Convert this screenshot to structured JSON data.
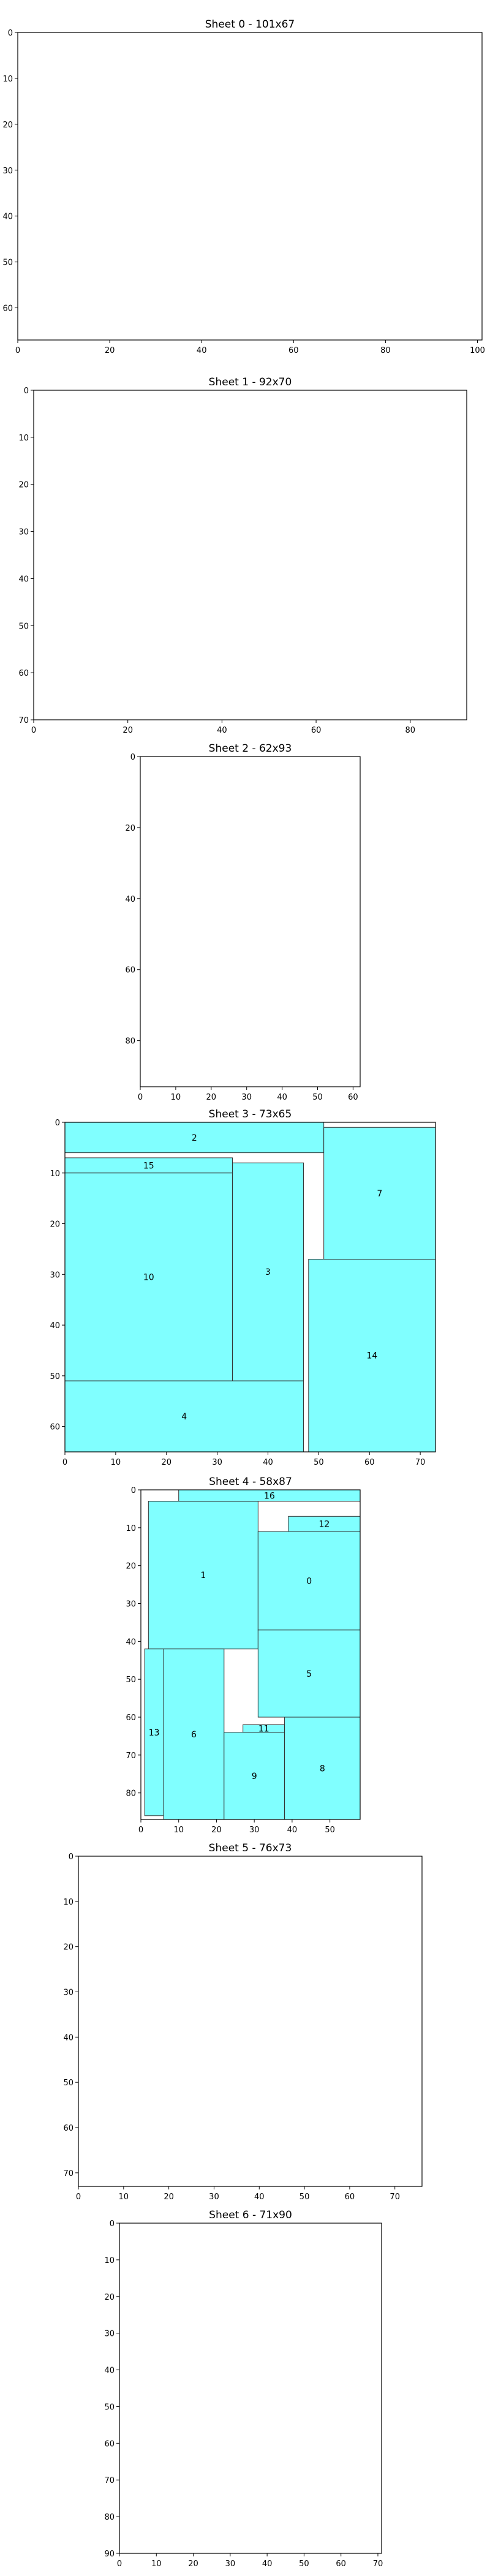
{
  "chart_data": [
    {
      "type": "rect-packing",
      "title": "Sheet 0 - 101x67",
      "sheet": {
        "width": 101,
        "height": 67
      },
      "xticks": [
        0,
        20,
        40,
        60,
        80,
        100
      ],
      "yticks": [
        0,
        10,
        20,
        30,
        40,
        50,
        60
      ],
      "pieces": []
    },
    {
      "type": "rect-packing",
      "title": "Sheet 1 - 92x70",
      "sheet": {
        "width": 92,
        "height": 70
      },
      "xticks": [
        0,
        20,
        40,
        60,
        80
      ],
      "yticks": [
        0,
        10,
        20,
        30,
        40,
        50,
        60,
        70
      ],
      "pieces": []
    },
    {
      "type": "rect-packing",
      "title": "Sheet 2 - 62x93",
      "sheet": {
        "width": 62,
        "height": 93
      },
      "xticks": [
        0,
        10,
        20,
        30,
        40,
        50,
        60
      ],
      "yticks": [
        0,
        20,
        40,
        60,
        80
      ],
      "pieces": []
    },
    {
      "type": "rect-packing",
      "title": "Sheet 3 - 73x65",
      "sheet": {
        "width": 73,
        "height": 65
      },
      "xticks": [
        0,
        10,
        20,
        30,
        40,
        50,
        60,
        70
      ],
      "yticks": [
        0,
        10,
        20,
        30,
        40,
        50,
        60
      ],
      "pieces": [
        {
          "id": "2",
          "x": 0,
          "y": 0,
          "w": 51,
          "h": 6
        },
        {
          "id": "15",
          "x": 0,
          "y": 7,
          "w": 33,
          "h": 3
        },
        {
          "id": "10",
          "x": 0,
          "y": 10,
          "w": 33,
          "h": 41
        },
        {
          "id": "3",
          "x": 33,
          "y": 8,
          "w": 14,
          "h": 43
        },
        {
          "id": "7",
          "x": 51,
          "y": 1,
          "w": 22,
          "h": 26
        },
        {
          "id": "14",
          "x": 48,
          "y": 27,
          "w": 25,
          "h": 38
        },
        {
          "id": "4",
          "x": 0,
          "y": 51,
          "w": 47,
          "h": 14
        }
      ]
    },
    {
      "type": "rect-packing",
      "title": "Sheet 4 - 58x87",
      "sheet": {
        "width": 58,
        "height": 87
      },
      "xticks": [
        0,
        10,
        20,
        30,
        40,
        50
      ],
      "yticks": [
        0,
        10,
        20,
        30,
        40,
        50,
        60,
        70,
        80
      ],
      "pieces": [
        {
          "id": "16",
          "x": 10,
          "y": 0,
          "w": 48,
          "h": 3
        },
        {
          "id": "12",
          "x": 39,
          "y": 7,
          "w": 19,
          "h": 4
        },
        {
          "id": "1",
          "x": 2,
          "y": 3,
          "w": 29,
          "h": 39
        },
        {
          "id": "0",
          "x": 31,
          "y": 11,
          "w": 27,
          "h": 26
        },
        {
          "id": "5",
          "x": 31,
          "y": 37,
          "w": 27,
          "h": 23
        },
        {
          "id": "13",
          "x": 1,
          "y": 42,
          "w": 5,
          "h": 44
        },
        {
          "id": "6",
          "x": 6,
          "y": 42,
          "w": 16,
          "h": 45
        },
        {
          "id": "11",
          "x": 27,
          "y": 62,
          "w": 11,
          "h": 2
        },
        {
          "id": "9",
          "x": 22,
          "y": 64,
          "w": 16,
          "h": 23
        },
        {
          "id": "8",
          "x": 38,
          "y": 60,
          "w": 20,
          "h": 27
        }
      ]
    },
    {
      "type": "rect-packing",
      "title": "Sheet 5 - 76x73",
      "sheet": {
        "width": 76,
        "height": 73
      },
      "xticks": [
        0,
        10,
        20,
        30,
        40,
        50,
        60,
        70
      ],
      "yticks": [
        0,
        10,
        20,
        30,
        40,
        50,
        60,
        70
      ],
      "pieces": []
    },
    {
      "type": "rect-packing",
      "title": "Sheet 6 - 71x90",
      "sheet": {
        "width": 71,
        "height": 90
      },
      "xticks": [
        0,
        10,
        20,
        30,
        40,
        50,
        60,
        70
      ],
      "yticks": [
        0,
        10,
        20,
        30,
        40,
        50,
        60,
        70,
        80,
        90
      ],
      "pieces": []
    }
  ],
  "colors": {
    "piece_fill": "#80ffff",
    "piece_stroke": "#333333",
    "axis": "#000000"
  }
}
